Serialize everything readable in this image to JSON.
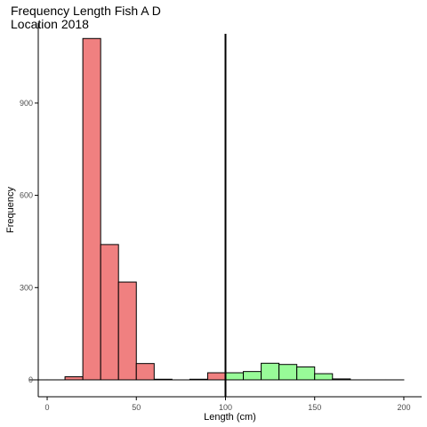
{
  "chart_data": {
    "type": "bar",
    "title_lines": [
      "Frequency Length Fish A D",
      "Location 2018"
    ],
    "xlabel": "Length (cm)",
    "ylabel": "Frequency",
    "xlim": [
      -5,
      210
    ],
    "ylim": [
      -55,
      1160
    ],
    "x_ticks": [
      0,
      50,
      100,
      150,
      200
    ],
    "y_ticks": [
      0,
      300,
      600,
      900
    ],
    "bin_width": 10,
    "vline_x": 100,
    "grid": false,
    "colors": {
      "below": "#F08080",
      "above": "#98FB98",
      "outline": "#000000",
      "axis": "#000000"
    },
    "bins": [
      {
        "start": 0,
        "count": 0,
        "group": "below"
      },
      {
        "start": 10,
        "count": 0,
        "group": "below"
      },
      {
        "start": 20,
        "count": 10,
        "group": "below"
      },
      {
        "start": 30,
        "count": 1110,
        "group": "below"
      },
      {
        "start": 40,
        "count": 440,
        "group": "below"
      },
      {
        "start": 50,
        "count": 318,
        "group": "below"
      },
      {
        "start": 60,
        "count": 53,
        "group": "below"
      },
      {
        "start": 70,
        "count": 2,
        "group": "below"
      },
      {
        "start": 80,
        "count": 0,
        "group": "below"
      },
      {
        "start": 90,
        "count": 2,
        "group": "below"
      },
      {
        "start": 100,
        "count": 23,
        "group": "below"
      },
      {
        "start": 110,
        "count": 23,
        "group": "above"
      },
      {
        "start": 120,
        "count": 27,
        "group": "above"
      },
      {
        "start": 130,
        "count": 54,
        "group": "above"
      },
      {
        "start": 140,
        "count": 50,
        "group": "above"
      },
      {
        "start": 150,
        "count": 42,
        "group": "above"
      },
      {
        "start": 160,
        "count": 20,
        "group": "above"
      },
      {
        "start": 170,
        "count": 3,
        "group": "above"
      },
      {
        "start": 180,
        "count": 0,
        "group": "above"
      },
      {
        "start": 190,
        "count": 0,
        "group": "above"
      },
      {
        "start": 200,
        "count": 0,
        "group": "above"
      }
    ]
  }
}
